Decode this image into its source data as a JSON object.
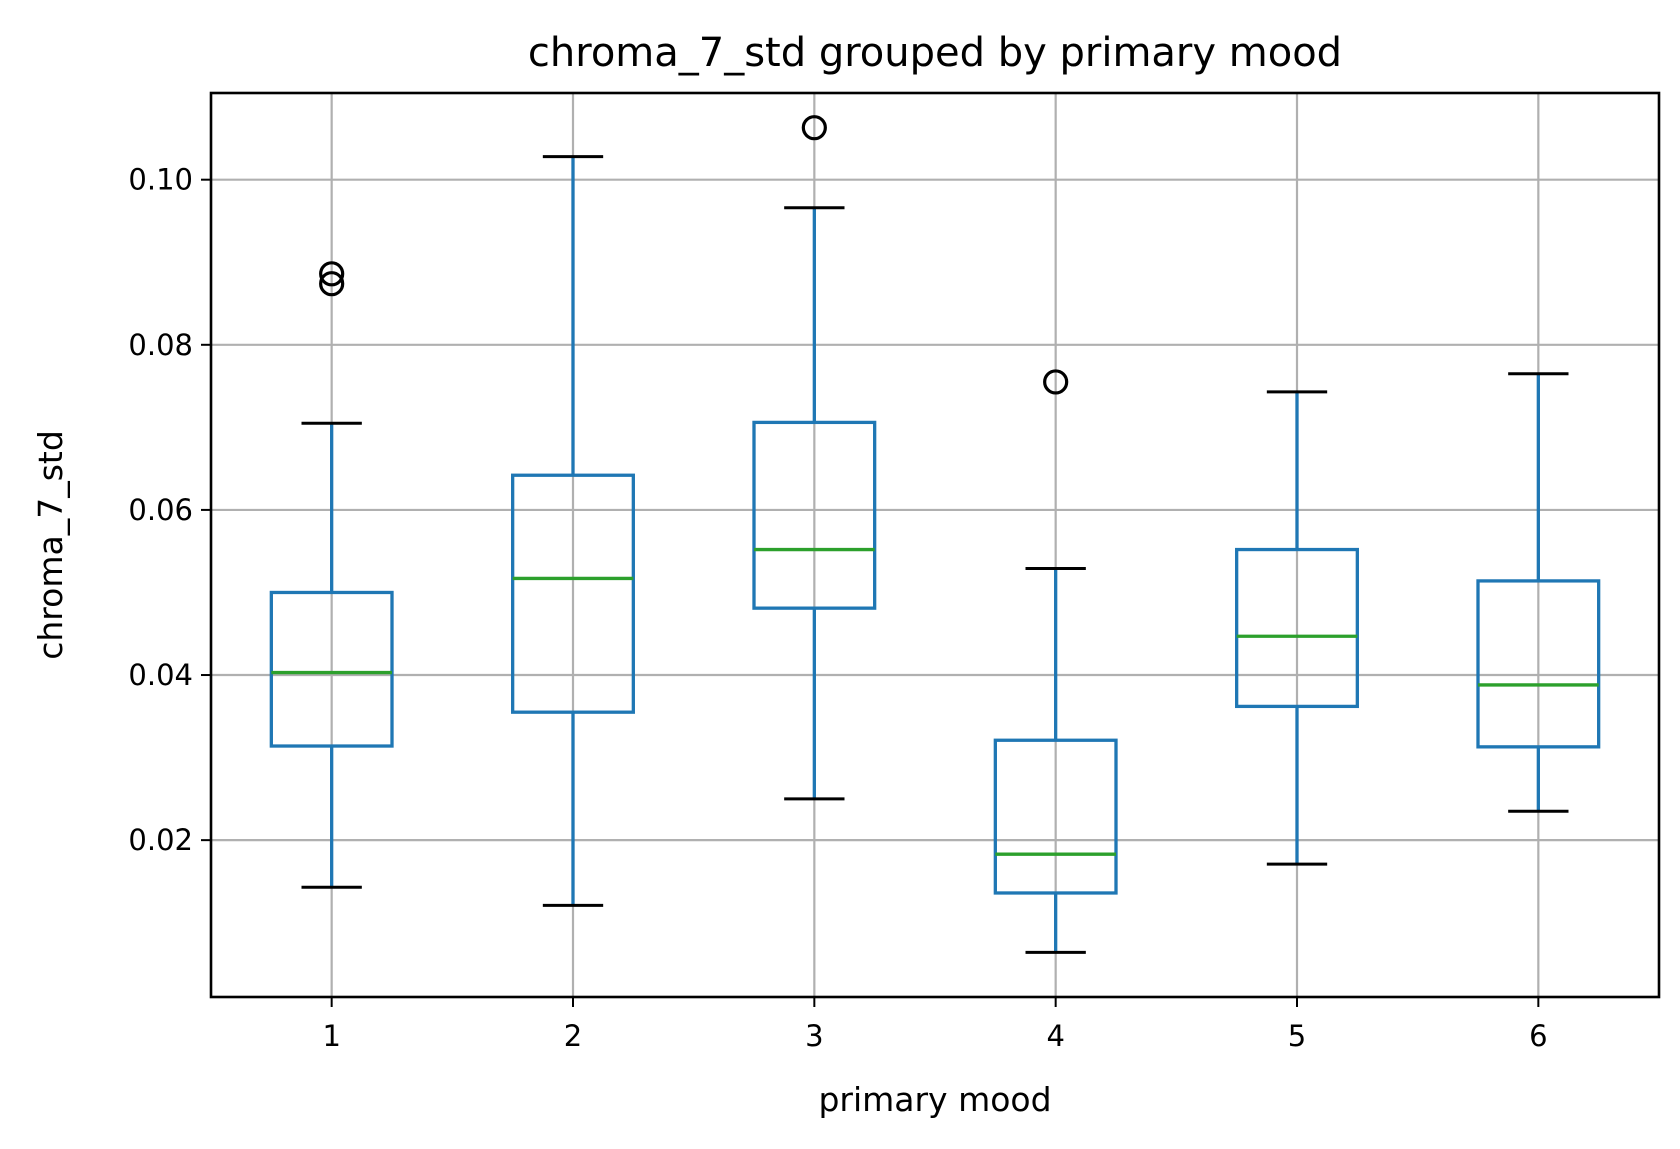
{
  "chart_data": {
    "type": "box",
    "title": "chroma_7_std grouped by primary mood",
    "xlabel": "primary mood",
    "ylabel": "chroma_7_std",
    "categories": [
      "1",
      "2",
      "3",
      "4",
      "5",
      "6"
    ],
    "ylim": [
      0.001,
      0.1105
    ],
    "yticks": [
      {
        "value": 0.02,
        "label": "0.02"
      },
      {
        "value": 0.04,
        "label": "0.04"
      },
      {
        "value": 0.06,
        "label": "0.06"
      },
      {
        "value": 0.08,
        "label": "0.08"
      },
      {
        "value": 0.1,
        "label": "0.10"
      }
    ],
    "grid": true,
    "colors": {
      "box": "#1f77b4",
      "median": "#2ca02c",
      "whisker_cap": "#000000",
      "grid": "#b0b0b0",
      "frame": "#000000"
    },
    "boxes": [
      {
        "category": "1",
        "whisker_low": 0.0143,
        "q1": 0.0314,
        "median": 0.0403,
        "q3": 0.05,
        "whisker_high": 0.0705,
        "outliers": [
          0.0874,
          0.0886
        ]
      },
      {
        "category": "2",
        "whisker_low": 0.0121,
        "q1": 0.0355,
        "median": 0.0517,
        "q3": 0.0642,
        "whisker_high": 0.1028,
        "outliers": []
      },
      {
        "category": "3",
        "whisker_low": 0.025,
        "q1": 0.0481,
        "median": 0.0552,
        "q3": 0.0706,
        "whisker_high": 0.0966,
        "outliers": [
          0.1063
        ]
      },
      {
        "category": "4",
        "whisker_low": 0.0064,
        "q1": 0.0136,
        "median": 0.0183,
        "q3": 0.0321,
        "whisker_high": 0.0529,
        "outliers": [
          0.0755
        ]
      },
      {
        "category": "5",
        "whisker_low": 0.0171,
        "q1": 0.0362,
        "median": 0.0447,
        "q3": 0.0552,
        "whisker_high": 0.0743,
        "outliers": []
      },
      {
        "category": "6",
        "whisker_low": 0.0235,
        "q1": 0.0313,
        "median": 0.0388,
        "q3": 0.0514,
        "whisker_high": 0.0765,
        "outliers": []
      }
    ]
  }
}
